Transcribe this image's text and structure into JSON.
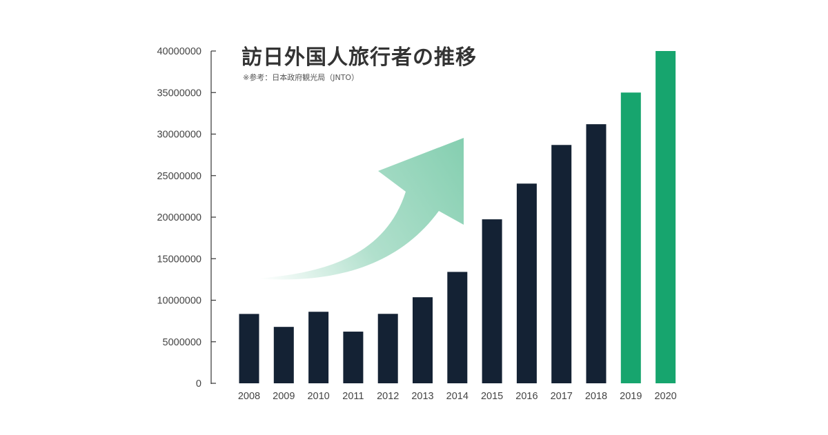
{
  "title": "訪日外国人旅行者の推移",
  "subtitle": "※参考：日本政府観光局（JNTO）",
  "colors": {
    "bar_default": "#142234",
    "bar_highlight": "#17a56e",
    "arrow": "#86cfb1",
    "axis": "#333333",
    "text": "#444444"
  },
  "chart_data": {
    "type": "bar",
    "title": "訪日外国人旅行者の推移",
    "subtitle": "※参考：日本政府観光局（JNTO）",
    "xlabel": "",
    "ylabel": "",
    "ylim": [
      0,
      40000000
    ],
    "yticks": [
      0,
      5000000,
      10000000,
      15000000,
      20000000,
      25000000,
      30000000,
      35000000,
      40000000
    ],
    "ytick_labels": [
      "0",
      "5000000",
      "10000000",
      "15000000",
      "20000000",
      "25000000",
      "30000000",
      "35000000",
      "40000000"
    ],
    "categories": [
      "2008",
      "2009",
      "2010",
      "2011",
      "2012",
      "2013",
      "2014",
      "2015",
      "2016",
      "2017",
      "2018",
      "2019",
      "2020"
    ],
    "values": [
      8350000,
      6790000,
      8610000,
      6220000,
      8360000,
      10360000,
      13410000,
      19740000,
      24040000,
      28690000,
      31190000,
      35000000,
      40000000
    ],
    "highlight_categories": [
      "2019",
      "2020"
    ],
    "grid": false,
    "legend": "none",
    "annotation": "rising-arrow"
  }
}
